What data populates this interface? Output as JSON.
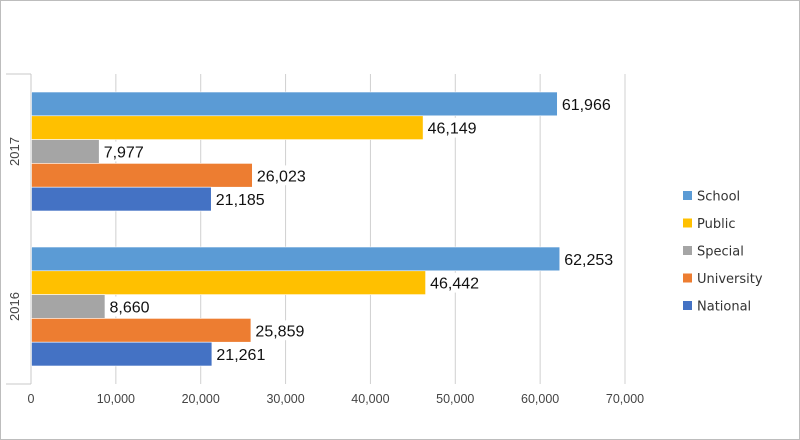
{
  "chart_data": {
    "type": "bar",
    "orientation": "horizontal",
    "categories": [
      "2017",
      "2016"
    ],
    "series": [
      {
        "name": "School",
        "color": "#5b9bd5",
        "values": [
          61966,
          62253
        ],
        "labels": [
          "61,966",
          "62,253"
        ]
      },
      {
        "name": "Public",
        "color": "#ffc000",
        "values": [
          46149,
          46442
        ],
        "labels": [
          "46,149",
          "46,442"
        ]
      },
      {
        "name": "Special",
        "color": "#a5a5a5",
        "values": [
          7977,
          8660
        ],
        "labels": [
          "7,977",
          "8,660"
        ]
      },
      {
        "name": "University",
        "color": "#ed7d31",
        "values": [
          26023,
          25859
        ],
        "labels": [
          "26,023",
          "25,859"
        ]
      },
      {
        "name": "National",
        "color": "#4472c4",
        "values": [
          21185,
          21261
        ],
        "labels": [
          "21,185",
          "21,261"
        ]
      }
    ],
    "xlim": [
      0,
      70000
    ],
    "xticks": [
      0,
      10000,
      20000,
      30000,
      40000,
      50000,
      60000,
      70000
    ],
    "xtick_labels": [
      "0",
      "10,000",
      "20,000",
      "30,000",
      "40,000",
      "50,000",
      "60,000",
      "70,000"
    ],
    "grid": true,
    "legend": "right",
    "title": "",
    "xlabel": "",
    "ylabel": ""
  }
}
